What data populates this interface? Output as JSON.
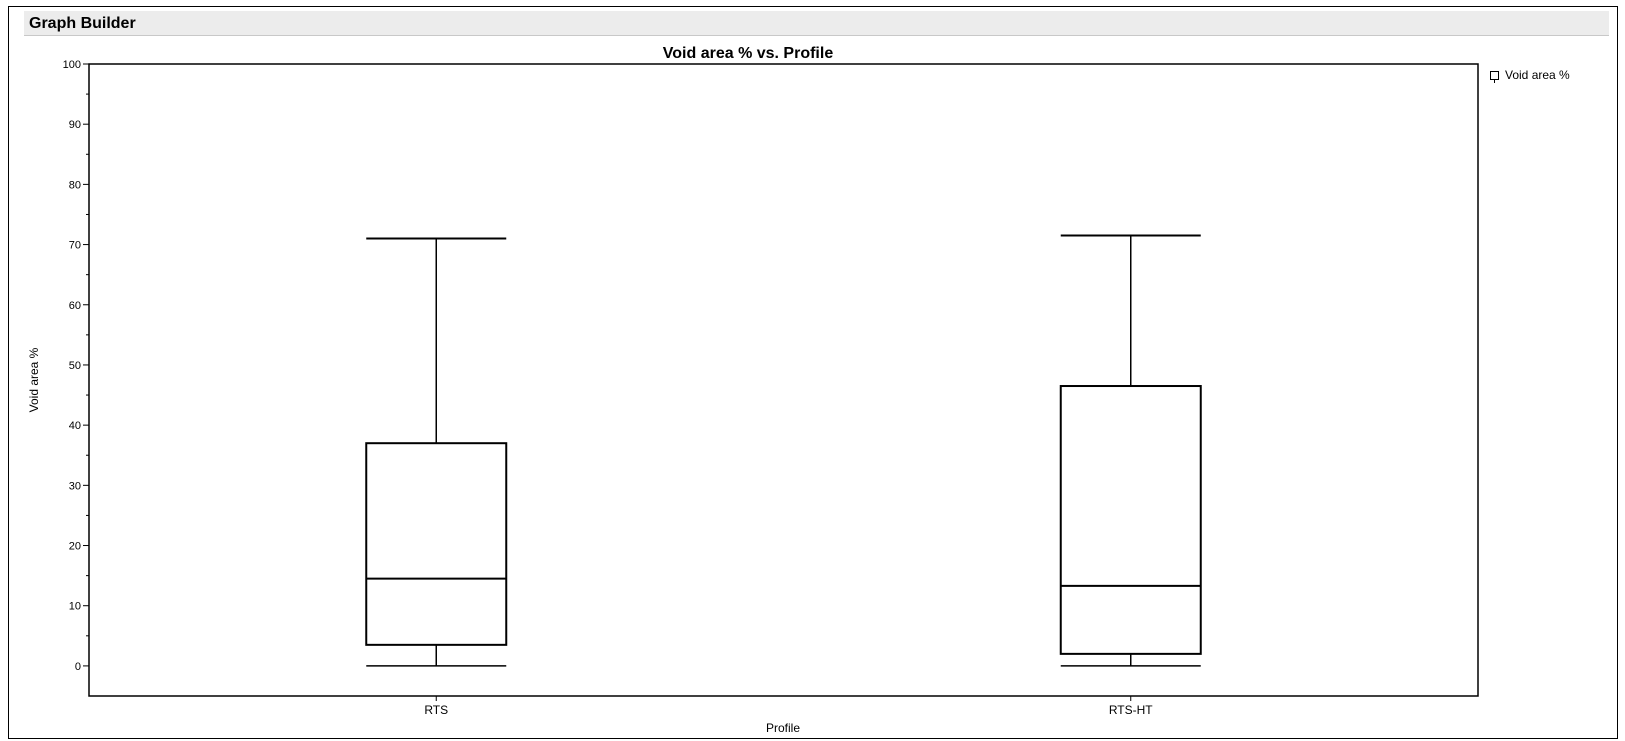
{
  "window": {
    "title": "Graph Builder"
  },
  "legend": {
    "items": [
      {
        "label": "Void area %",
        "icon": "box-plot-icon"
      }
    ]
  },
  "chart_data": {
    "type": "box",
    "title": "Void area % vs. Profile",
    "xlabel": "Profile",
    "ylabel": "Void area %",
    "ylim": [
      -5,
      100
    ],
    "yticks": [
      0,
      10,
      20,
      30,
      40,
      50,
      60,
      70,
      80,
      90,
      100
    ],
    "grid": false,
    "legend_position": "top-right",
    "categories": [
      "RTS",
      "RTS-HT"
    ],
    "series": [
      {
        "name": "Void area %",
        "boxes": [
          {
            "category": "RTS",
            "min": 0,
            "q1": 3.5,
            "median": 14.5,
            "q3": 37,
            "max": 71
          },
          {
            "category": "RTS-HT",
            "min": 0,
            "q1": 2,
            "median": 13.3,
            "q3": 46.5,
            "max": 71.5
          }
        ]
      }
    ]
  }
}
